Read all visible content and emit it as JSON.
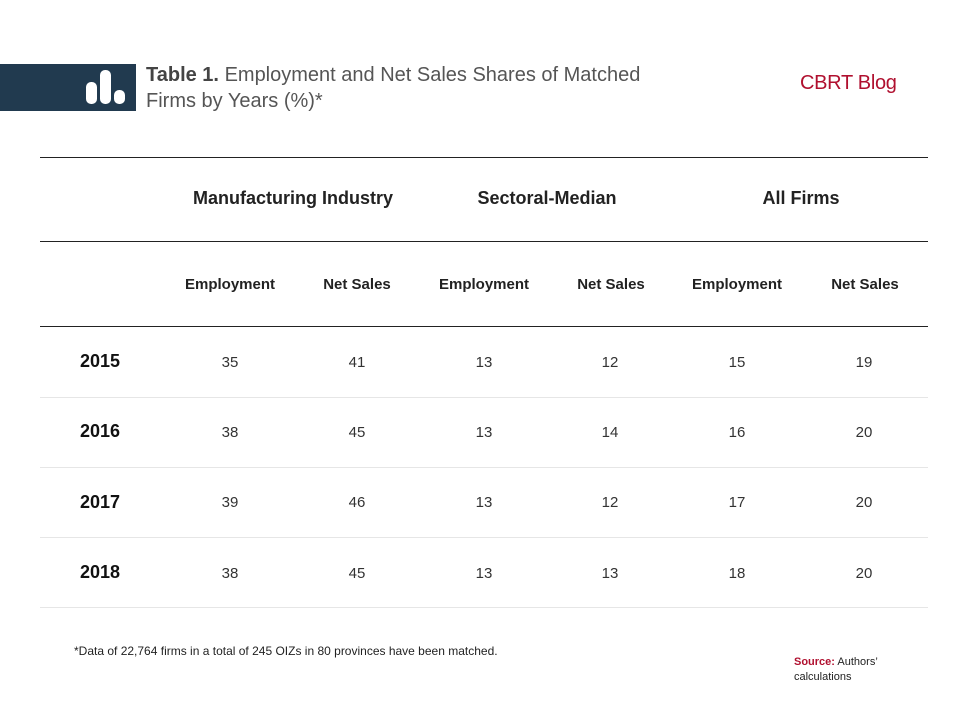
{
  "header": {
    "title_bold": "Table 1.",
    "title_line1": "Employment and Net Sales Shares of Matched",
    "title_line2": "Firms by Years (%)*",
    "brand": "CBRT Blog",
    "icon": "bar-chart-icon",
    "band_color": "#213a4f",
    "brand_color": "#b0102f"
  },
  "table": {
    "groups": [
      "Manufacturing Industry",
      "Sectoral-Median",
      "All Firms"
    ],
    "subheaders": [
      "Employment",
      "Net Sales",
      "Employment",
      "Net Sales",
      "Employment",
      "Net Sales"
    ],
    "rows": [
      {
        "year": "2015",
        "values": [
          "35",
          "41",
          "13",
          "12",
          "15",
          "19"
        ]
      },
      {
        "year": "2016",
        "values": [
          "38",
          "45",
          "13",
          "14",
          "16",
          "20"
        ]
      },
      {
        "year": "2017",
        "values": [
          "39",
          "46",
          "13",
          "12",
          "17",
          "20"
        ]
      },
      {
        "year": "2018",
        "values": [
          "38",
          "45",
          "13",
          "13",
          "18",
          "20"
        ]
      }
    ]
  },
  "footer": {
    "note": "*Data of 22,764  firms in a total of 245 OIZs in 80 provinces have been matched.",
    "source_label": "Source:",
    "source_line1": "Authors’",
    "source_line2": "calculations"
  }
}
